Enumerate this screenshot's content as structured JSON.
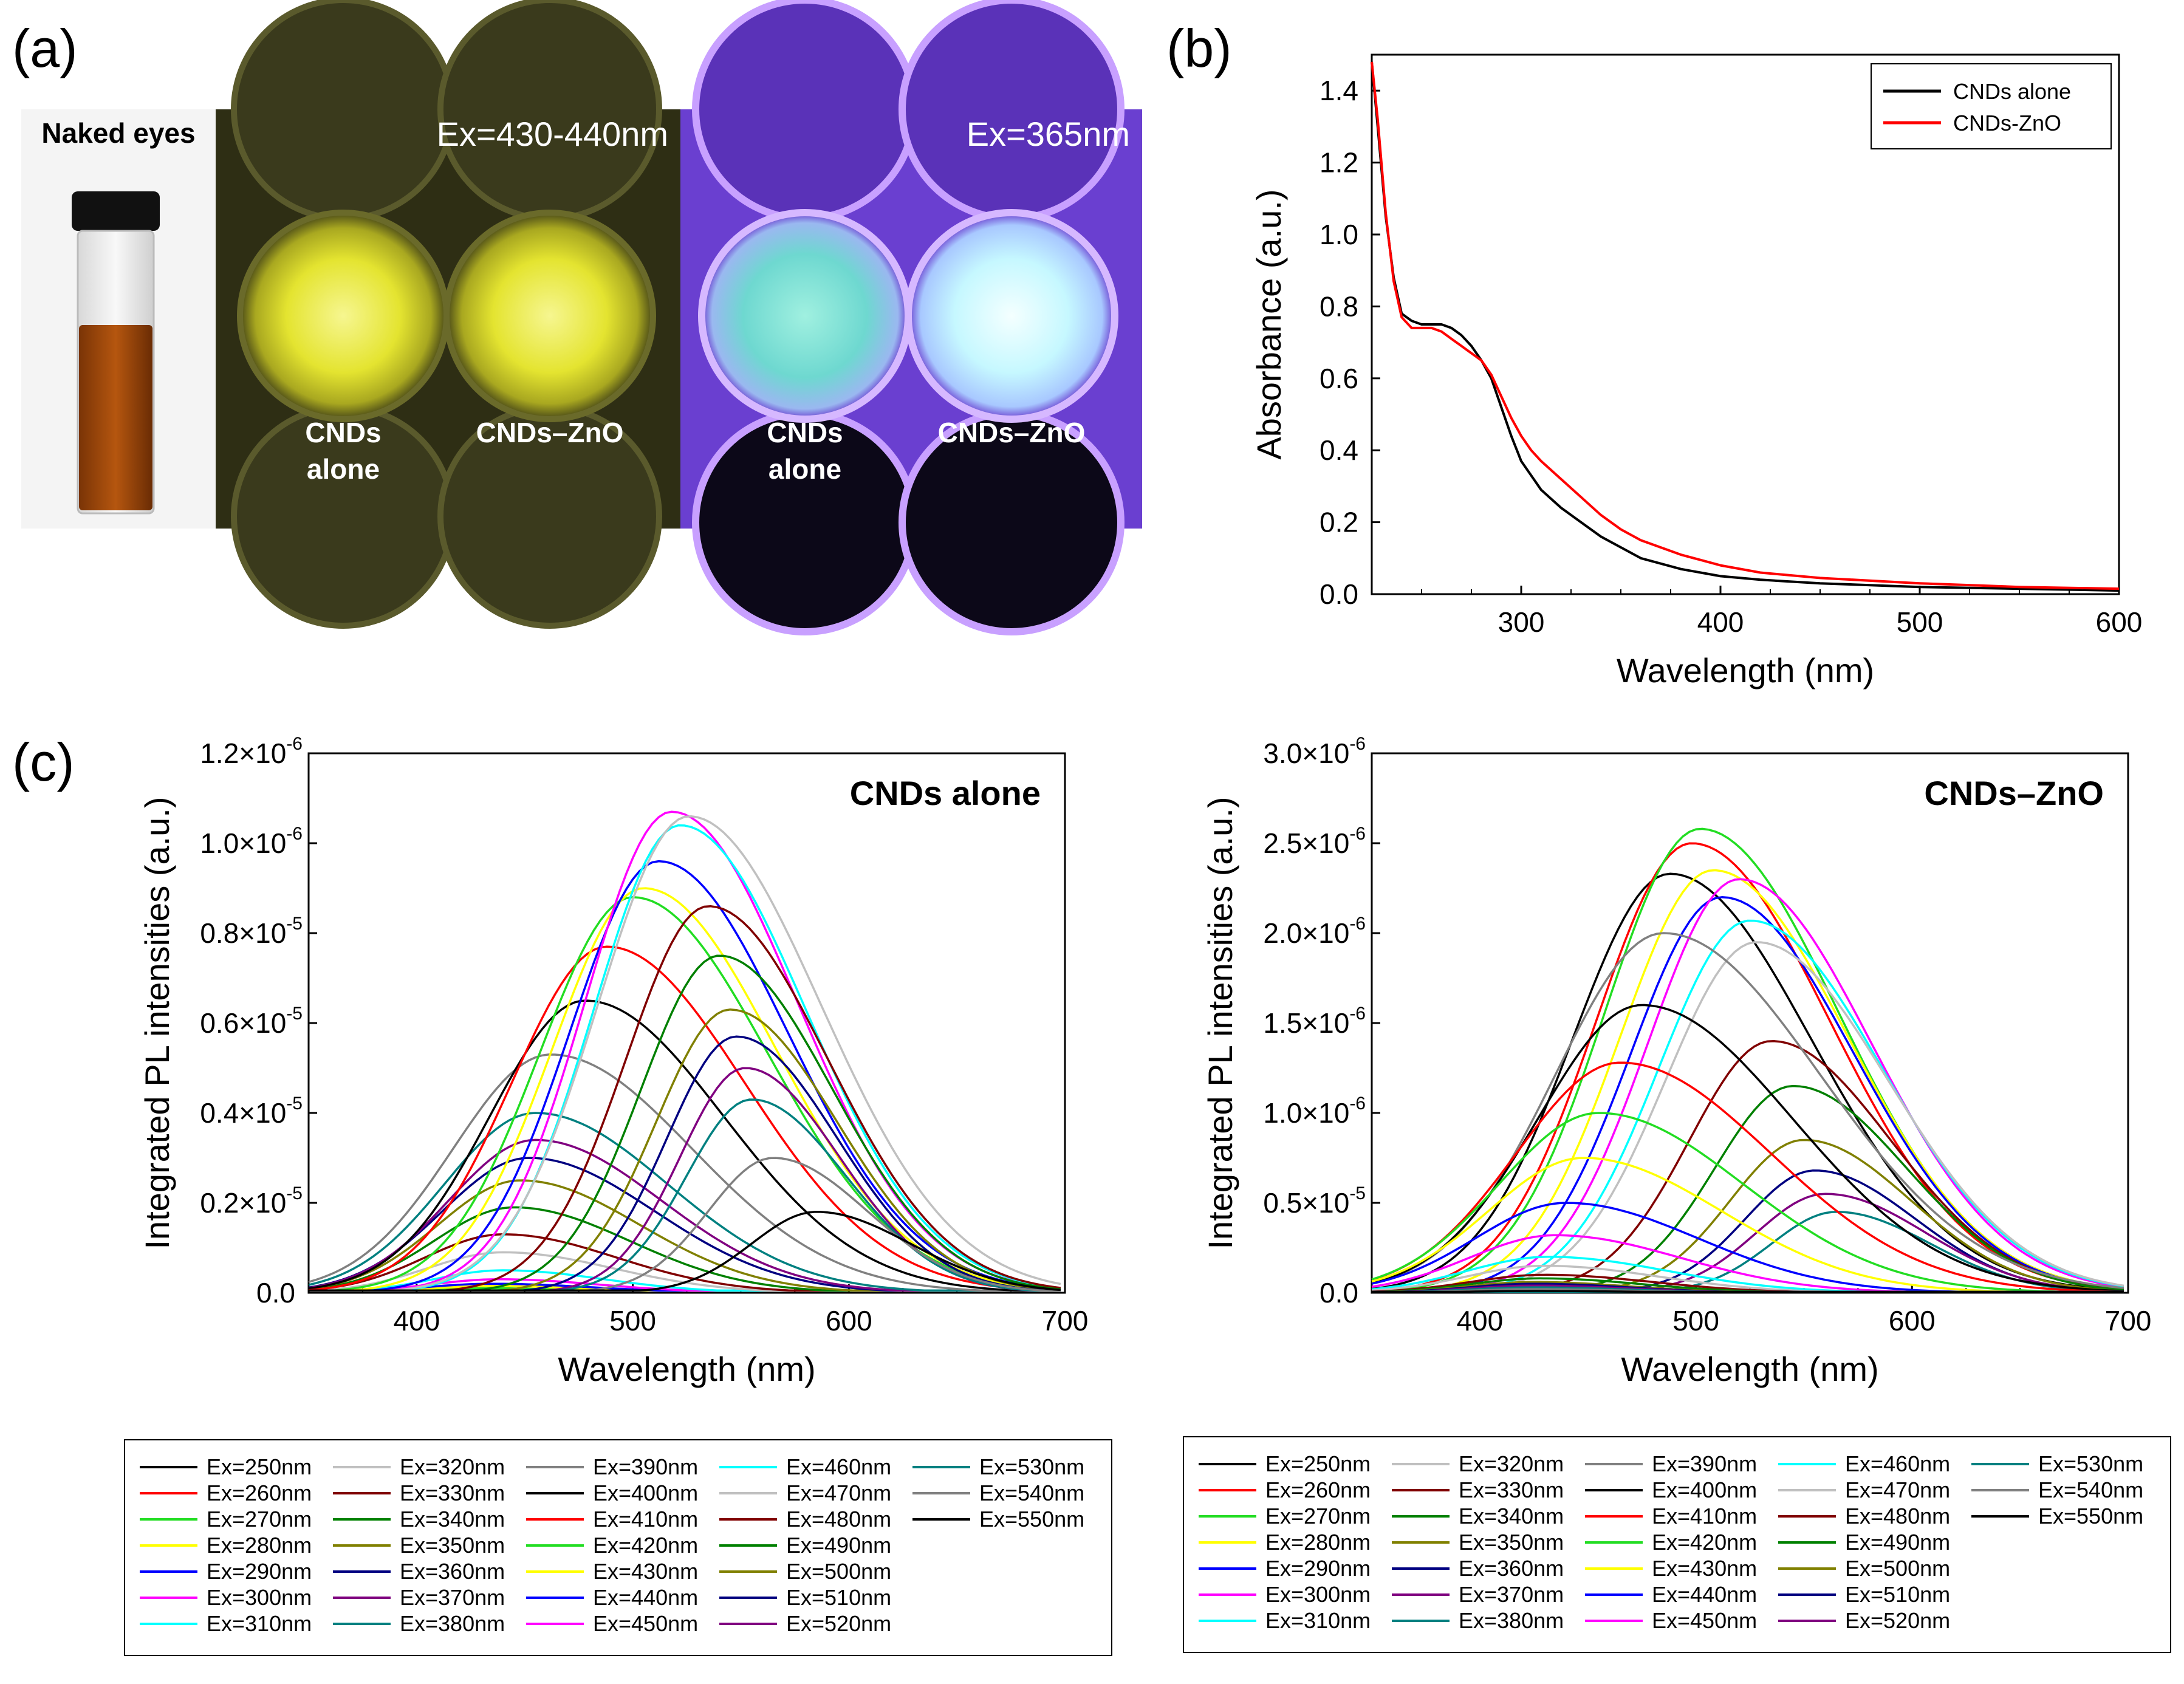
{
  "panel_a": {
    "label": "(a)",
    "vial_caption": "Naked eyes",
    "plate1_caption": "Ex=430-440nm",
    "plate2_caption": "Ex=365nm",
    "well_left_line1": "CNDs",
    "well_left_line2": "alone",
    "well_right": "CNDs–ZnO",
    "colors": {
      "plate1_bg": "#2e2e14",
      "plate1_glow": "#e8e830",
      "plate2_bg": "#6a3fd0",
      "plate2_glow": "#c8ffff",
      "vial_liquid": "#a34a0c"
    }
  },
  "panel_b_label": "(b)",
  "panel_c_label": "(c)",
  "ex_labels": [
    "Ex=250nm",
    "Ex=260nm",
    "Ex=270nm",
    "Ex=280nm",
    "Ex=290nm",
    "Ex=300nm",
    "Ex=310nm",
    "Ex=320nm",
    "Ex=330nm",
    "Ex=340nm",
    "Ex=350nm",
    "Ex=360nm",
    "Ex=370nm",
    "Ex=380nm",
    "Ex=390nm",
    "Ex=400nm",
    "Ex=410nm",
    "Ex=420nm",
    "Ex=430nm",
    "Ex=440nm",
    "Ex=450nm",
    "Ex=460nm",
    "Ex=470nm",
    "Ex=480nm",
    "Ex=490nm",
    "Ex=500nm",
    "Ex=510nm",
    "Ex=520nm",
    "Ex=530nm",
    "Ex=540nm",
    "Ex=550nm"
  ],
  "ex_colors": [
    "#000000",
    "#ff0000",
    "#22dd22",
    "#ffff00",
    "#0000ff",
    "#ff00ff",
    "#00ffff",
    "#c0c0c0",
    "#800000",
    "#008000",
    "#808000",
    "#000080",
    "#800080",
    "#008080",
    "#808080",
    "#000000",
    "#ff0000",
    "#22dd22",
    "#ffff00",
    "#0000ff",
    "#ff00ff",
    "#00ffff",
    "#c0c0c0",
    "#800000",
    "#008000",
    "#808000",
    "#000080",
    "#800080",
    "#008080",
    "#808080",
    "#000000"
  ],
  "chart_data": [
    {
      "type": "line",
      "title": "",
      "xlabel": "Wavelength (nm)",
      "ylabel": "Absorbance (a.u.)",
      "xlim": [
        225,
        600
      ],
      "ylim": [
        0,
        1.5
      ],
      "xticks": [
        "300",
        "400",
        "500",
        "600"
      ],
      "yticks": [
        "0.0",
        "0.2",
        "0.4",
        "0.6",
        "0.8",
        "1.0",
        "1.2",
        "1.4"
      ],
      "legend_position": "top-right",
      "series": [
        {
          "name": "CNDs alone",
          "color": "#000000",
          "x": [
            225,
            228,
            232,
            236,
            240,
            245,
            250,
            255,
            260,
            265,
            270,
            275,
            280,
            285,
            290,
            295,
            300,
            305,
            310,
            320,
            330,
            340,
            350,
            360,
            380,
            400,
            420,
            450,
            500,
            550,
            600
          ],
          "y": [
            1.48,
            1.3,
            1.05,
            0.88,
            0.78,
            0.76,
            0.75,
            0.75,
            0.75,
            0.74,
            0.72,
            0.69,
            0.65,
            0.6,
            0.52,
            0.44,
            0.37,
            0.33,
            0.29,
            0.24,
            0.2,
            0.16,
            0.13,
            0.1,
            0.07,
            0.05,
            0.04,
            0.03,
            0.02,
            0.015,
            0.01
          ]
        },
        {
          "name": "CNDs-ZnO",
          "color": "#ff0000",
          "x": [
            225,
            228,
            232,
            236,
            240,
            245,
            250,
            255,
            260,
            265,
            270,
            275,
            280,
            285,
            290,
            295,
            300,
            305,
            310,
            320,
            330,
            340,
            350,
            360,
            380,
            400,
            420,
            450,
            500,
            550,
            600
          ],
          "y": [
            1.48,
            1.32,
            1.06,
            0.87,
            0.77,
            0.74,
            0.74,
            0.74,
            0.73,
            0.71,
            0.69,
            0.67,
            0.65,
            0.61,
            0.55,
            0.49,
            0.44,
            0.4,
            0.37,
            0.32,
            0.27,
            0.22,
            0.18,
            0.15,
            0.11,
            0.08,
            0.06,
            0.045,
            0.03,
            0.02,
            0.015
          ]
        }
      ]
    },
    {
      "type": "line",
      "title": "CNDs alone",
      "xlabel": "Wavelength (nm)",
      "ylabel": "Integrated PL intensities (a.u.)",
      "xlim": [
        350,
        700
      ],
      "ylim": [
        0,
        1.2
      ],
      "xticks": [
        "400",
        "500",
        "600",
        "700"
      ],
      "yticks": [
        {
          "m": "0.0",
          "e": ""
        },
        {
          "m": "0.2×10",
          "e": "-5"
        },
        {
          "m": "0.4×10",
          "e": "-5"
        },
        {
          "m": "0.6×10",
          "e": "-5"
        },
        {
          "m": "0.8×10",
          "e": "-5"
        },
        {
          "m": "1.0×10",
          "e": "-6"
        },
        {
          "m": "1.2×10",
          "e": "-6"
        }
      ],
      "series_peaks": [
        [
          0.0,
          425,
          30
        ],
        [
          0.005,
          430,
          30
        ],
        [
          0.01,
          432,
          30
        ],
        [
          0.015,
          435,
          30
        ],
        [
          0.02,
          435,
          32
        ],
        [
          0.03,
          438,
          32
        ],
        [
          0.05,
          440,
          32
        ],
        [
          0.09,
          440,
          35
        ],
        [
          0.13,
          440,
          36
        ],
        [
          0.19,
          445,
          37
        ],
        [
          0.25,
          448,
          38
        ],
        [
          0.3,
          452,
          40
        ],
        [
          0.34,
          455,
          40
        ],
        [
          0.4,
          455,
          42
        ],
        [
          0.53,
          462,
          45
        ],
        [
          0.65,
          478,
          44
        ],
        [
          0.77,
          488,
          44
        ],
        [
          0.88,
          500,
          43
        ],
        [
          0.9,
          505,
          42
        ],
        [
          0.96,
          512,
          41
        ],
        [
          1.07,
          518,
          40
        ],
        [
          1.04,
          522,
          40
        ],
        [
          1.06,
          526,
          42
        ],
        [
          0.86,
          535,
          38
        ],
        [
          0.75,
          540,
          36
        ],
        [
          0.63,
          545,
          34
        ],
        [
          0.57,
          548,
          32
        ],
        [
          0.5,
          552,
          30
        ],
        [
          0.43,
          555,
          30
        ],
        [
          0.3,
          565,
          30
        ],
        [
          0.18,
          585,
          30
        ]
      ]
    },
    {
      "type": "line",
      "title": "CNDs–ZnO",
      "xlabel": "Wavelength (nm)",
      "ylabel": "Integrated PL intensities (a.u.)",
      "xlim": [
        350,
        700
      ],
      "ylim": [
        0,
        3.0
      ],
      "xticks": [
        "400",
        "500",
        "600",
        "700"
      ],
      "yticks": [
        {
          "m": "0.0",
          "e": ""
        },
        {
          "m": "0.5×10",
          "e": "-5"
        },
        {
          "m": "1.0×10",
          "e": "-6"
        },
        {
          "m": "1.5×10",
          "e": "-6"
        },
        {
          "m": "2.0×10",
          "e": "-6"
        },
        {
          "m": "2.5×10",
          "e": "-6"
        },
        {
          "m": "3.0×10",
          "e": "-6"
        }
      ],
      "series_peaks": [
        [
          2.33,
          488,
          45
        ],
        [
          2.5,
          498,
          44
        ],
        [
          2.58,
          502,
          44
        ],
        [
          2.35,
          508,
          43
        ],
        [
          2.2,
          512,
          42
        ],
        [
          2.3,
          520,
          42
        ],
        [
          2.07,
          525,
          42
        ],
        [
          1.95,
          528,
          42
        ],
        [
          1.4,
          535,
          38
        ],
        [
          1.15,
          545,
          36
        ],
        [
          0.85,
          550,
          34
        ],
        [
          0.68,
          555,
          32
        ],
        [
          0.55,
          560,
          32
        ],
        [
          0.45,
          565,
          30
        ],
        [
          2.0,
          485,
          50
        ],
        [
          1.6,
          475,
          48
        ],
        [
          1.28,
          465,
          48
        ],
        [
          1.0,
          455,
          46
        ],
        [
          0.75,
          448,
          44
        ],
        [
          0.5,
          440,
          42
        ],
        [
          0.32,
          435,
          40
        ],
        [
          0.2,
          432,
          38
        ],
        [
          0.15,
          430,
          36
        ],
        [
          0.1,
          430,
          34
        ],
        [
          0.08,
          428,
          32
        ],
        [
          0.06,
          425,
          30
        ],
        [
          0.05,
          425,
          30
        ],
        [
          0.04,
          425,
          30
        ],
        [
          0.03,
          425,
          30
        ],
        [
          0.02,
          425,
          30
        ],
        [
          0.01,
          425,
          30
        ]
      ]
    }
  ]
}
